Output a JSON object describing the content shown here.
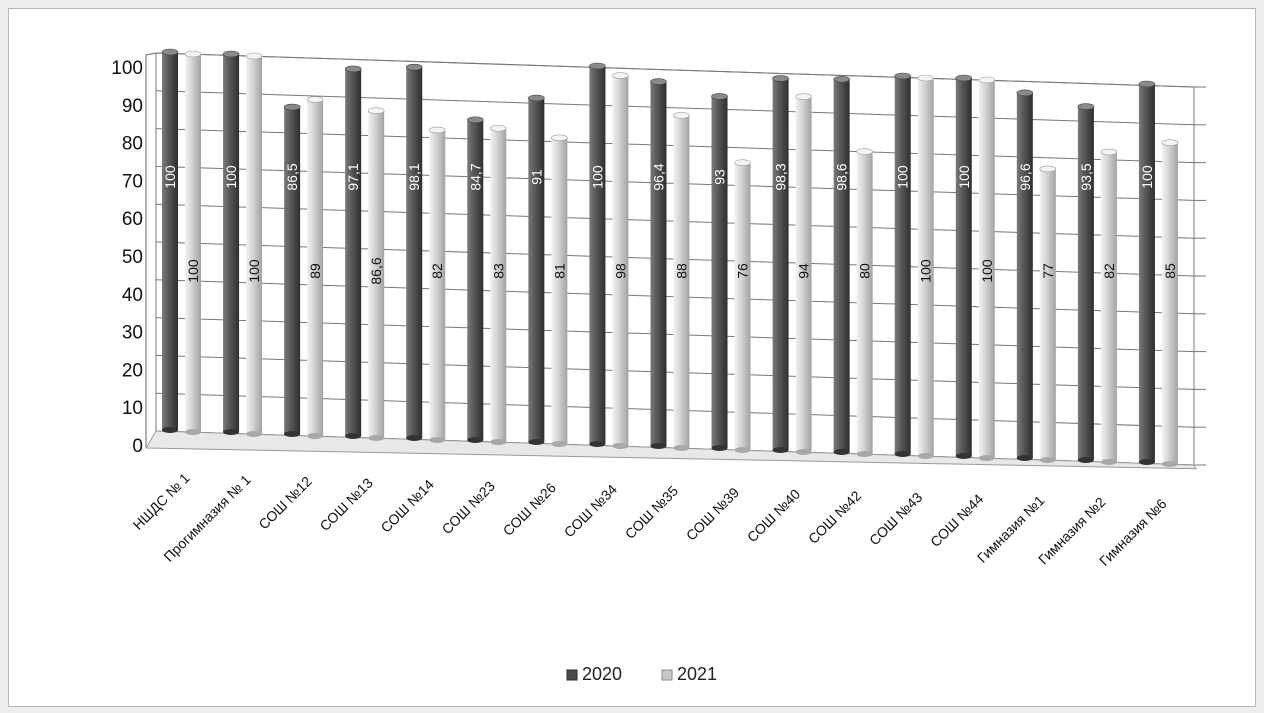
{
  "chart_data": {
    "type": "bar",
    "categories": [
      "НШДС № 1",
      "Прогимназия № 1",
      "СОШ №12",
      "СОШ №13",
      "СОШ №14",
      "СОШ №23",
      "СОШ №26",
      "СОШ №34",
      "СОШ №35",
      "СОШ №39",
      "СОШ №40",
      "СОШ №42",
      "СОШ №43",
      "СОШ №44",
      "Гимназия №1",
      "Гимназия №2",
      "Гимназия №6"
    ],
    "series": [
      {
        "name": "2020",
        "values": [
          100,
          100,
          86.5,
          97.1,
          98.1,
          84.7,
          91,
          100,
          96.4,
          93,
          98.3,
          98.6,
          100,
          100,
          96.6,
          93.5,
          100
        ],
        "labels": [
          "100",
          "100",
          "86,5",
          "97,1",
          "98,1",
          "84,7",
          "91",
          "100",
          "96,4",
          "93",
          "98,3",
          "98,6",
          "100",
          "100",
          "96,6",
          "93,5",
          "100"
        ],
        "color": "#5a5a5a"
      },
      {
        "name": "2021",
        "values": [
          100,
          100,
          89,
          86.6,
          82,
          83,
          81,
          98,
          88,
          76,
          94,
          80,
          100,
          100,
          77,
          82,
          85
        ],
        "labels": [
          "100",
          "100",
          "89",
          "86,6",
          "82",
          "83",
          "81",
          "98",
          "88",
          "76",
          "94",
          "80",
          "100",
          "100",
          "77",
          "82",
          "85"
        ],
        "color": "#d0d0d0"
      }
    ],
    "y_ticks": [
      "0",
      "10",
      "20",
      "30",
      "40",
      "50",
      "60",
      "70",
      "80",
      "90",
      "100"
    ],
    "ylim": [
      0,
      100
    ],
    "grid": true,
    "legend_position": "bottom",
    "style": "3d-cylinder"
  }
}
